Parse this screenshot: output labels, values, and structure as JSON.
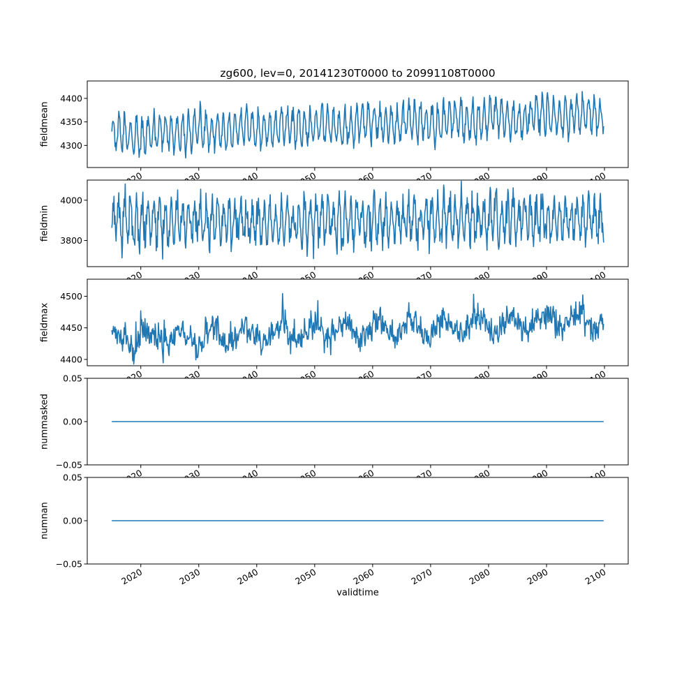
{
  "figure": {
    "title": "zg600, lev=0, 20141230T0000 to 20991108T0000",
    "xlabel": "validtime",
    "line_color": "#1f77b4",
    "axis_color": "#000000",
    "background_color": "#ffffff",
    "xlim": [
      2010.76,
      2104.09
    ],
    "xticks": [
      2020,
      2030,
      2040,
      2050,
      2060,
      2070,
      2080,
      2090,
      2100
    ],
    "xtick_labels": [
      "2020",
      "2030",
      "2040",
      "2050",
      "2060",
      "2070",
      "2080",
      "2090",
      "2100"
    ]
  },
  "chart_data": [
    {
      "type": "line",
      "name": "fieldmean",
      "ylabel": "fieldmean",
      "ylim": [
        4253,
        4437
      ],
      "yticks": [
        4300,
        4350,
        4400
      ],
      "ytick_labels": [
        "4300",
        "4350",
        "4400"
      ],
      "x_start": 2015.0,
      "x_end": 2099.85,
      "description": "Dense annual oscillation between about 4270 and 4430 with a slow upward trend from roughly 4320 to 4370",
      "model": {
        "points": 920,
        "base_start": 4322,
        "base_end": 4366,
        "seasonal_amplitude": 35,
        "noise_sd": 9,
        "wander_amplitude": 6,
        "wander_period": 7.3,
        "spike_amplitude": 0,
        "spike_prob": 0,
        "seed": 101
      }
    },
    {
      "type": "line",
      "name": "fieldmin",
      "ylabel": "fieldmin",
      "ylim": [
        3670,
        4100
      ],
      "yticks": [
        3800,
        4000
      ],
      "ytick_labels": [
        "3800",
        "4000"
      ],
      "x_start": 2015.0,
      "x_end": 2099.85,
      "description": "Very noisy oscillation between about 3700 and 4060 centered near 3900 with no clear trend",
      "model": {
        "points": 920,
        "base_start": 3893,
        "base_end": 3908,
        "seasonal_amplitude": 92,
        "noise_sd": 40,
        "wander_amplitude": 0,
        "wander_period": 5,
        "spike_amplitude": 0,
        "spike_prob": 0,
        "seed": 202
      }
    },
    {
      "type": "line",
      "name": "fieldmax",
      "ylabel": "fieldmax",
      "ylim": [
        4390,
        4527
      ],
      "yticks": [
        4400,
        4450,
        4500
      ],
      "ytick_labels": [
        "4400",
        "4450",
        "4500"
      ],
      "x_start": 2015.0,
      "x_end": 2099.85,
      "description": "Noisy series rising from about 4430 to 4470 with occasional upward spikes reaching about 4520",
      "model": {
        "points": 920,
        "base_start": 4427,
        "base_end": 4462,
        "seasonal_amplitude": 7,
        "noise_sd": 9,
        "wander_amplitude": 13,
        "wander_period": 5.7,
        "spike_amplitude": 38,
        "spike_prob": 0.05,
        "seed": 303
      }
    },
    {
      "type": "line",
      "name": "nummasked",
      "ylabel": "nummasked",
      "ylim": [
        -0.05,
        0.05
      ],
      "yticks": [
        -0.05,
        0,
        0.05
      ],
      "ytick_labels": [
        "−0.05",
        "0.00",
        "0.05"
      ],
      "x_start": 2015.0,
      "x_end": 2099.85,
      "description": "Constant zero line across the full time range",
      "model": {
        "points": 2,
        "base_start": 0,
        "base_end": 0,
        "seasonal_amplitude": 0,
        "noise_sd": 0,
        "wander_amplitude": 0,
        "wander_period": 1,
        "spike_amplitude": 0,
        "spike_prob": 0,
        "seed": 1
      }
    },
    {
      "type": "line",
      "name": "numnan",
      "ylabel": "numnan",
      "ylim": [
        -0.05,
        0.05
      ],
      "yticks": [
        -0.05,
        0,
        0.05
      ],
      "ytick_labels": [
        "−0.05",
        "0.00",
        "0.05"
      ],
      "x_start": 2015.0,
      "x_end": 2099.85,
      "description": "Constant zero line across the full time range",
      "model": {
        "points": 2,
        "base_start": 0,
        "base_end": 0,
        "seasonal_amplitude": 0,
        "noise_sd": 0,
        "wander_amplitude": 0,
        "wander_period": 1,
        "spike_amplitude": 0,
        "spike_prob": 0,
        "seed": 2
      }
    }
  ]
}
